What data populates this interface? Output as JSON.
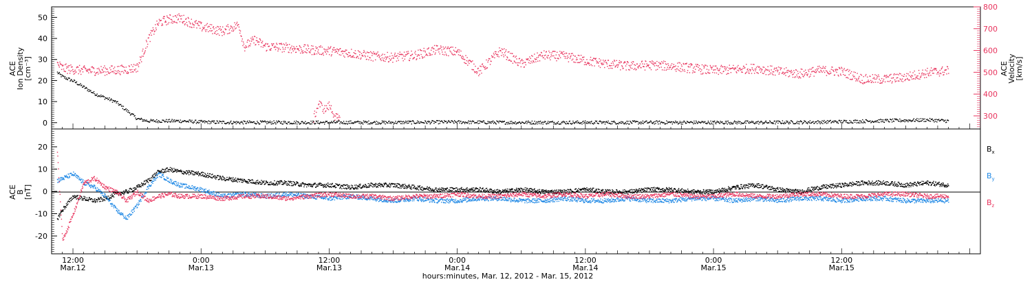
{
  "colors": {
    "black": "#000000",
    "pink": "#e8335d",
    "blue": "#1e88e5"
  },
  "chart_data": [
    {
      "type": "scatter",
      "panel": "top",
      "left_axis": {
        "label_lines": [
          "ACE",
          "Ion Density",
          "[cm⁻³]"
        ],
        "ylim": [
          -3,
          55
        ],
        "ticks": [
          0,
          10,
          20,
          30,
          40,
          50
        ]
      },
      "right_axis": {
        "label_lines": [
          "ACE",
          "Velocity",
          "[km/s]"
        ],
        "ylim": [
          240,
          800
        ],
        "ticks": [
          300,
          400,
          500,
          600,
          700,
          800
        ]
      },
      "xlim_hours": [
        -2,
        85
      ],
      "series": [
        {
          "axis": "left",
          "color": "black",
          "x": [
            -1.5,
            -1,
            0,
            1,
            2,
            3,
            4,
            5,
            6,
            7,
            8,
            9,
            10,
            12,
            15,
            20,
            25,
            30,
            35,
            40,
            45,
            50,
            55,
            60,
            65,
            70,
            75,
            80,
            82
          ],
          "y": [
            24,
            22,
            20,
            17,
            14,
            12,
            10,
            6,
            2,
            1,
            1,
            1,
            1,
            0.5,
            0.3,
            0.3,
            0.3,
            0.3,
            0.5,
            0.3,
            0.3,
            0.3,
            0.3,
            0.3,
            0.3,
            0.5,
            1,
            1.5,
            1
          ]
        },
        {
          "axis": "right",
          "color": "pink",
          "x": [
            -1.5,
            -1,
            0,
            1,
            2,
            3,
            4,
            5,
            5.5,
            6,
            7,
            8,
            9,
            10,
            11,
            12,
            13,
            14,
            15,
            15.5,
            16,
            17,
            18,
            20,
            22,
            24,
            26,
            28,
            30,
            32,
            34,
            36,
            38,
            40,
            42,
            44,
            46,
            48,
            50,
            52,
            54,
            56,
            58,
            60,
            62,
            64,
            66,
            68,
            70,
            72,
            74,
            76,
            78,
            80,
            82
          ],
          "y": [
            540,
            520,
            515,
            510,
            510,
            510,
            512,
            515,
            520,
            525,
            650,
            730,
            745,
            750,
            730,
            710,
            700,
            690,
            710,
            720,
            620,
            650,
            620,
            615,
            605,
            600,
            590,
            575,
            570,
            580,
            605,
            595,
            505,
            600,
            540,
            580,
            575,
            555,
            540,
            530,
            535,
            530,
            520,
            510,
            515,
            520,
            505,
            495,
            510,
            505,
            470,
            470,
            480,
            500,
            510
          ]
        },
        {
          "axis": "right",
          "color": "pink",
          "x": [
            22.5,
            23,
            23.5,
            24,
            24.5,
            25
          ],
          "y": [
            290,
            360,
            330,
            350,
            300,
            280
          ]
        }
      ]
    },
    {
      "type": "scatter",
      "panel": "bottom",
      "left_axis": {
        "label_lines": [
          "ACE",
          "B",
          "[nT]"
        ],
        "ylim": [
          -28,
          28
        ],
        "ticks": [
          -20,
          -10,
          0,
          10,
          20
        ]
      },
      "xlim_hours": [
        -2,
        85
      ],
      "legend": [
        "Bx",
        "By",
        "Bz"
      ],
      "legend_placement": "right",
      "series": [
        {
          "name": "Bx",
          "color": "black",
          "x": [
            -1.5,
            -1,
            0,
            1,
            2,
            3,
            4,
            5,
            6,
            7,
            8,
            9,
            10,
            12,
            14,
            16,
            18,
            20,
            22,
            24,
            26,
            28,
            30,
            32,
            34,
            36,
            38,
            40,
            42,
            44,
            46,
            48,
            50,
            52,
            54,
            56,
            58,
            60,
            62,
            64,
            66,
            68,
            70,
            72,
            74,
            76,
            78,
            80,
            82
          ],
          "y": [
            -12,
            -8,
            -2,
            -3,
            -4,
            -3,
            -1,
            0,
            2,
            5,
            9,
            10,
            9,
            8,
            6,
            5,
            4,
            4,
            3,
            3,
            2,
            3,
            3,
            2,
            1,
            1,
            1,
            0,
            1,
            0,
            0,
            1,
            0,
            0,
            1,
            1,
            0,
            0,
            2,
            3,
            1,
            0,
            2,
            3,
            4,
            4,
            3,
            4,
            3
          ]
        },
        {
          "name": "By",
          "color": "blue",
          "x": [
            -1.5,
            -1,
            0,
            1,
            2,
            3,
            4,
            5,
            6,
            7,
            8,
            9,
            10,
            12,
            14,
            16,
            18,
            20,
            22,
            24,
            26,
            28,
            30,
            32,
            34,
            36,
            38,
            40,
            42,
            44,
            46,
            48,
            50,
            52,
            54,
            56,
            58,
            60,
            62,
            64,
            66,
            68,
            70,
            72,
            74,
            76,
            78,
            80,
            82
          ],
          "y": [
            5,
            6,
            8,
            4,
            2,
            -2,
            -8,
            -12,
            -6,
            2,
            8,
            5,
            3,
            1,
            -2,
            -1,
            -2,
            -1,
            -2,
            -3,
            -2,
            -3,
            -4,
            -3,
            -4,
            -4,
            -3,
            -3,
            -4,
            -4,
            -3,
            -4,
            -4,
            -3,
            -4,
            -4,
            -3,
            -3,
            -4,
            -3,
            -4,
            -3,
            -3,
            -4,
            -3,
            -3,
            -4,
            -4,
            -4
          ]
        },
        {
          "name": "Bz",
          "color": "pink",
          "x": [
            -1.5,
            -1,
            0,
            1,
            2,
            3,
            4,
            5,
            6,
            7,
            8,
            9,
            10,
            12,
            14,
            16,
            18,
            20,
            22,
            24,
            26,
            28,
            30,
            32,
            34,
            36,
            38,
            40,
            42,
            44,
            46,
            48,
            50,
            52,
            54,
            56,
            58,
            60,
            62,
            64,
            66,
            68,
            70,
            72,
            74,
            76,
            78,
            80,
            82
          ],
          "y": [
            18,
            -22,
            -10,
            4,
            6,
            2,
            0,
            -4,
            0,
            -4,
            -2,
            -1,
            -2,
            -2,
            -3,
            -2,
            -2,
            -3,
            -2,
            -1,
            -2,
            -2,
            -3,
            -2,
            -2,
            -1,
            -2,
            -2,
            -1,
            -2,
            -1,
            -2,
            -1,
            -2,
            -2,
            -1,
            -2,
            -2,
            -1,
            -2,
            -2,
            -1,
            -1,
            -2,
            -2,
            -1,
            -1,
            -2,
            -2
          ]
        }
      ]
    }
  ],
  "x_axis": {
    "tick_labels": [
      {
        "time": "12:00",
        "date": "Mar.12"
      },
      {
        "time": "0:00",
        "date": "Mar.13"
      },
      {
        "time": "12:00",
        "date": "Mar.13"
      },
      {
        "time": "0:00",
        "date": "Mar.14"
      },
      {
        "time": "12:00",
        "date": "Mar.14"
      },
      {
        "time": "0:00",
        "date": "Mar.15"
      },
      {
        "time": "12:00",
        "date": "Mar.15"
      }
    ],
    "tick_hours": [
      0,
      12,
      24,
      36,
      48,
      60,
      72
    ],
    "title": "hours:minutes, Mar. 12, 2012 - Mar. 15, 2012"
  },
  "legend_labels": {
    "bx": "B",
    "bx_sub": "x",
    "by": "B",
    "by_sub": "y",
    "bz": "B",
    "bz_sub": "z"
  }
}
